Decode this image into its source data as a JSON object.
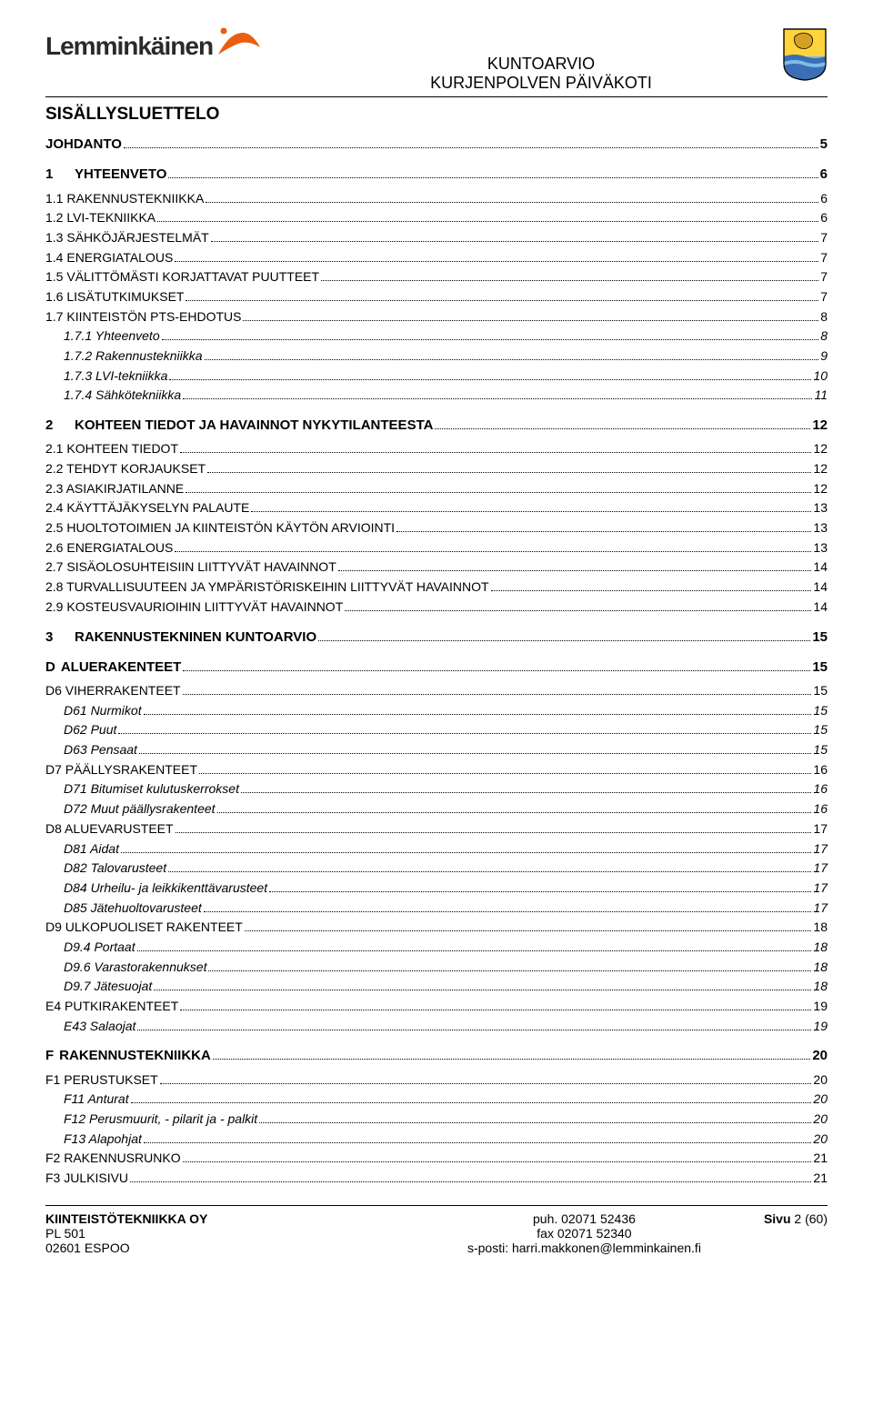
{
  "logo_text": "Lemminkäinen",
  "logo_color": "#e95e0f",
  "logo_text_color": "#2a2a2a",
  "shield_colors": {
    "top": "#ffd43b",
    "bottom": "#3b6fb5",
    "wave": "#ffffff",
    "waves2": "#7dbde8",
    "border": "#000000"
  },
  "header_title1": "KUNTOARVIO",
  "header_title2": "KURJENPOLVEN PÄIVÄKOTI",
  "section_title": "SISÄLLYSLUETTELO",
  "toc": [
    {
      "level": 0,
      "num": "",
      "text": "JOHDANTO",
      "page": "5",
      "style": "bold"
    },
    {
      "level": 0,
      "num": "1",
      "text": "YHTEENVETO",
      "page": "6",
      "style": "bold"
    },
    {
      "level": 1,
      "text": "1.1 RAKENNUSTEKNIIKKA",
      "page": "6",
      "style": "smallcaps"
    },
    {
      "level": 1,
      "text": "1.2 LVI-TEKNIIKKA",
      "page": "6",
      "style": "smallcaps"
    },
    {
      "level": 1,
      "text": "1.3 SÄHKÖJÄRJESTELMÄT",
      "page": "7",
      "style": "smallcaps"
    },
    {
      "level": 1,
      "text": "1.4 ENERGIATALOUS",
      "page": "7",
      "style": "smallcaps"
    },
    {
      "level": 1,
      "text": "1.5 VÄLITTÖMÄSTI KORJATTAVAT PUUTTEET",
      "page": "7",
      "style": "smallcaps"
    },
    {
      "level": 1,
      "text": "1.6 LISÄTUTKIMUKSET",
      "page": "7",
      "style": "smallcaps"
    },
    {
      "level": 1,
      "text": "1.7 KIINTEISTÖN PTS-EHDOTUS",
      "page": "8",
      "style": "smallcaps"
    },
    {
      "level": 2,
      "text": "1.7.1 Yhteenveto",
      "page": "8",
      "style": "italic"
    },
    {
      "level": 2,
      "text": "1.7.2 Rakennustekniikka",
      "page": "9",
      "style": "italic"
    },
    {
      "level": 2,
      "text": "1.7.3 LVI-tekniikka",
      "page": "10",
      "style": "italic"
    },
    {
      "level": 2,
      "text": "1.7.4 Sähkötekniikka",
      "page": "11",
      "style": "italic"
    },
    {
      "level": 0,
      "num": "2",
      "text": "KOHTEEN TIEDOT JA HAVAINNOT NYKYTILANTEESTA",
      "page": "12",
      "style": "bold"
    },
    {
      "level": 1,
      "text": "2.1 KOHTEEN TIEDOT",
      "page": "12",
      "style": "smallcaps"
    },
    {
      "level": 1,
      "text": "2.2 TEHDYT KORJAUKSET",
      "page": "12",
      "style": "smallcaps"
    },
    {
      "level": 1,
      "text": "2.3 ASIAKIRJATILANNE",
      "page": "12",
      "style": "smallcaps"
    },
    {
      "level": 1,
      "text": "2.4 KÄYTTÄJÄKYSELYN PALAUTE",
      "page": "13",
      "style": "smallcaps"
    },
    {
      "level": 1,
      "text": "2.5 HUOLTOTOIMIEN JA KIINTEISTÖN KÄYTÖN ARVIOINTI",
      "page": "13",
      "style": "smallcaps"
    },
    {
      "level": 1,
      "text": "2.6 ENERGIATALOUS",
      "page": "13",
      "style": "smallcaps"
    },
    {
      "level": 1,
      "text": "2.7 SISÄOLOSUHTEISIIN LIITTYVÄT HAVAINNOT",
      "page": "14",
      "style": "smallcaps"
    },
    {
      "level": 1,
      "text": "2.8 TURVALLISUUTEEN JA YMPÄRISTÖRISKEIHIN LIITTYVÄT HAVAINNOT",
      "page": "14",
      "style": "smallcaps"
    },
    {
      "level": 1,
      "text": "2.9 KOSTEUSVAURIOIHIN LIITTYVÄT HAVAINNOT",
      "page": "14",
      "style": "smallcaps"
    },
    {
      "level": 0,
      "num": "3",
      "text": "RAKENNUSTEKNINEN KUNTOARVIO",
      "page": "15",
      "style": "bold"
    },
    {
      "level": 0,
      "num": "D",
      "text": "ALUERAKENTEET",
      "page": "15",
      "style": "bold",
      "nospace": true
    },
    {
      "level": 1,
      "text": "D6 VIHERRAKENTEET",
      "page": "15",
      "style": "smallcaps"
    },
    {
      "level": 2,
      "text": "D61 Nurmikot",
      "page": "15",
      "style": "italic"
    },
    {
      "level": 2,
      "text": "D62 Puut",
      "page": "15",
      "style": "italic"
    },
    {
      "level": 2,
      "text": "D63 Pensaat",
      "page": "15",
      "style": "italic"
    },
    {
      "level": 1,
      "text": "D7 PÄÄLLYSRAKENTEET",
      "page": "16",
      "style": "smallcaps"
    },
    {
      "level": 2,
      "text": "D71 Bitumiset kulutuskerrokset",
      "page": "16",
      "style": "italic"
    },
    {
      "level": 2,
      "text": "D72 Muut päällysrakenteet",
      "page": "16",
      "style": "italic"
    },
    {
      "level": 1,
      "text": "D8 ALUEVARUSTEET",
      "page": "17",
      "style": "smallcaps"
    },
    {
      "level": 2,
      "text": "D81 Aidat",
      "page": "17",
      "style": "italic"
    },
    {
      "level": 2,
      "text": "D82 Talovarusteet",
      "page": "17",
      "style": "italic"
    },
    {
      "level": 2,
      "text": "D84 Urheilu- ja leikkikenttävarusteet",
      "page": "17",
      "style": "italic"
    },
    {
      "level": 2,
      "text": "D85 Jätehuoltovarusteet",
      "page": "17",
      "style": "italic"
    },
    {
      "level": 1,
      "text": "D9 ULKOPUOLISET RAKENTEET",
      "page": "18",
      "style": "smallcaps"
    },
    {
      "level": 2,
      "text": "D9.4 Portaat",
      "page": "18",
      "style": "italic"
    },
    {
      "level": 2,
      "text": "D9.6 Varastorakennukset",
      "page": "18",
      "style": "italic"
    },
    {
      "level": 2,
      "text": "D9.7 Jätesuojat",
      "page": "18",
      "style": "italic"
    },
    {
      "level": 1,
      "text": "E4 PUTKIRAKENTEET",
      "page": "19",
      "style": "smallcaps"
    },
    {
      "level": 2,
      "text": "E43 Salaojat",
      "page": "19",
      "style": "italic"
    },
    {
      "level": 0,
      "num": "F",
      "text": "RAKENNUSTEKNIIKKA",
      "page": "20",
      "style": "bold",
      "nospace": true
    },
    {
      "level": 1,
      "text": "F1 PERUSTUKSET",
      "page": "20",
      "style": "smallcaps"
    },
    {
      "level": 2,
      "text": "F11 Anturat",
      "page": "20",
      "style": "italic"
    },
    {
      "level": 2,
      "text": "F12 Perusmuurit, - pilarit ja - palkit",
      "page": "20",
      "style": "italic"
    },
    {
      "level": 2,
      "text": "F13 Alapohjat",
      "page": "20",
      "style": "italic"
    },
    {
      "level": 1,
      "text": "F2 RAKENNUSRUNKO",
      "page": "21",
      "style": "smallcaps"
    },
    {
      "level": 1,
      "text": "F3 JULKISIVU",
      "page": "21",
      "style": "smallcaps"
    }
  ],
  "footer": {
    "left1": "KIINTEISTÖTEKNIIKKA OY",
    "left2": "PL 501",
    "left3": "02601 ESPOO",
    "center1": "puh. 02071 52436",
    "center2": "fax 02071 52340",
    "center3": "s-posti: harri.makkonen@lemminkainen.fi",
    "right_prefix": "Sivu ",
    "right_num": "2",
    "right_suffix": " (60)"
  }
}
